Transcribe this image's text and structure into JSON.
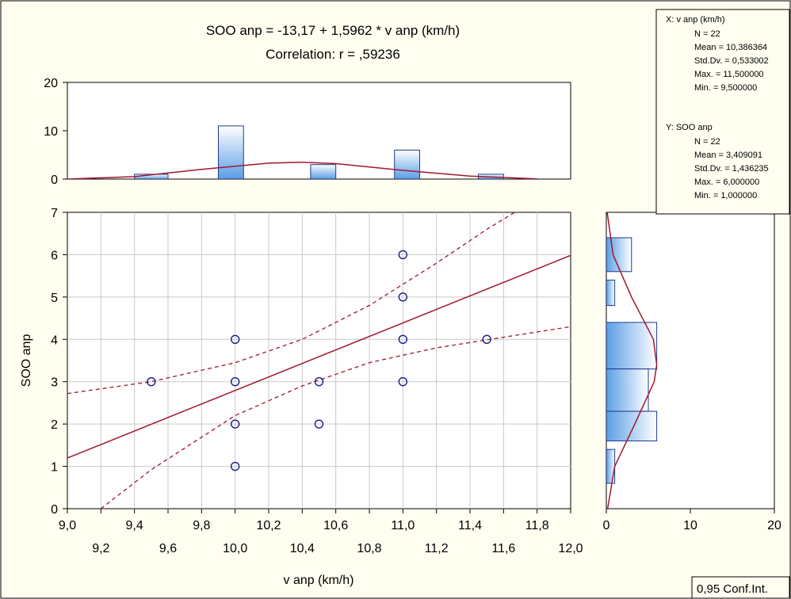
{
  "chart_data": {
    "type": "scatter",
    "title": "SOO anp = -13,17 + 1,5962 * v anp (km/h)",
    "subtitle": "Correlation: r = ,59236",
    "xlabel": "v anp (km/h)",
    "ylabel": "SOO anp",
    "xlim": [
      9.0,
      12.0
    ],
    "ylim": [
      0,
      7
    ],
    "x_ticks_row1": [
      "9,0",
      "9,4",
      "9,8",
      "10,2",
      "10,6",
      "11,0",
      "11,4",
      "11,8"
    ],
    "x_ticks_row1_values": [
      9.0,
      9.4,
      9.8,
      10.2,
      10.6,
      11.0,
      11.4,
      11.8
    ],
    "x_ticks_row2": [
      "9,2",
      "9,6",
      "10,0",
      "10,4",
      "10,8",
      "11,2",
      "11,6",
      "12,0"
    ],
    "x_ticks_row2_values": [
      9.2,
      9.6,
      10.0,
      10.4,
      10.8,
      11.2,
      11.6,
      12.0
    ],
    "y_ticks": [
      "0",
      "1",
      "2",
      "3",
      "4",
      "5",
      "6",
      "7"
    ],
    "y_tick_values": [
      0,
      1,
      2,
      3,
      4,
      5,
      6,
      7
    ],
    "points": [
      {
        "x": 9.5,
        "y": 3
      },
      {
        "x": 10.0,
        "y": 4
      },
      {
        "x": 10.0,
        "y": 3
      },
      {
        "x": 10.0,
        "y": 2
      },
      {
        "x": 10.0,
        "y": 1
      },
      {
        "x": 10.5,
        "y": 3
      },
      {
        "x": 10.5,
        "y": 2
      },
      {
        "x": 11.0,
        "y": 6
      },
      {
        "x": 11.0,
        "y": 5
      },
      {
        "x": 11.0,
        "y": 4
      },
      {
        "x": 11.0,
        "y": 3
      },
      {
        "x": 11.5,
        "y": 4
      }
    ],
    "regression": {
      "intercept": -13.17,
      "slope": 1.5962
    },
    "conf_band_upper": [
      [
        9.0,
        2.72
      ],
      [
        9.5,
        3.0
      ],
      [
        10.0,
        3.45
      ],
      [
        10.4,
        4.0
      ],
      [
        10.8,
        4.8
      ],
      [
        11.2,
        5.8
      ],
      [
        11.5,
        6.6
      ],
      [
        11.75,
        7.2
      ]
    ],
    "conf_band_lower": [
      [
        9.2,
        0.0
      ],
      [
        9.5,
        0.92
      ],
      [
        10.0,
        2.2
      ],
      [
        10.4,
        2.9
      ],
      [
        10.8,
        3.45
      ],
      [
        11.2,
        3.8
      ],
      [
        11.6,
        4.05
      ],
      [
        12.0,
        4.3
      ]
    ],
    "top_hist": {
      "ylim": [
        0,
        20
      ],
      "y_ticks": [
        "0",
        "10",
        "20"
      ],
      "y_tick_values": [
        0,
        10,
        20
      ],
      "bins": [
        {
          "x0": 9.4,
          "x1": 9.6,
          "count": 1
        },
        {
          "x0": 9.9,
          "x1": 10.05,
          "count": 11
        },
        {
          "x0": 10.45,
          "x1": 10.6,
          "count": 3
        },
        {
          "x0": 10.95,
          "x1": 11.1,
          "count": 6
        },
        {
          "x0": 11.45,
          "x1": 11.6,
          "count": 1
        }
      ],
      "normal_curve": [
        [
          9.0,
          0.0
        ],
        [
          9.4,
          0.5
        ],
        [
          9.8,
          2.0
        ],
        [
          10.2,
          3.3
        ],
        [
          10.4,
          3.5
        ],
        [
          10.6,
          3.2
        ],
        [
          11.0,
          1.8
        ],
        [
          11.4,
          0.6
        ],
        [
          11.8,
          0.05
        ]
      ]
    },
    "side_hist": {
      "xlim": [
        0,
        20
      ],
      "x_ticks": [
        "0",
        "10",
        "20"
      ],
      "x_tick_values": [
        0,
        10,
        20
      ],
      "bins": [
        {
          "y0": 5.6,
          "y1": 6.4,
          "count": 3
        },
        {
          "y0": 4.8,
          "y1": 5.4,
          "count": 1
        },
        {
          "y0": 3.3,
          "y1": 4.4,
          "count": 6
        },
        {
          "y0": 2.3,
          "y1": 3.3,
          "count": 5
        },
        {
          "y0": 1.6,
          "y1": 2.3,
          "count": 6
        },
        {
          "y0": 0.6,
          "y1": 1.4,
          "count": 1
        }
      ],
      "normal_curve": [
        [
          7.0,
          0.1
        ],
        [
          6.0,
          0.8
        ],
        [
          5.0,
          3.0
        ],
        [
          4.0,
          5.6
        ],
        [
          3.4,
          6.0
        ],
        [
          3.0,
          5.7
        ],
        [
          2.0,
          3.4
        ],
        [
          1.0,
          1.0
        ],
        [
          0.0,
          0.15
        ]
      ]
    },
    "stats": {
      "x_header": "X:  v anp (km/h)",
      "x_lines": [
        "N = 22",
        "Mean = 10,386364",
        "Std.Dv. = 0,533002",
        "Max. = 11,500000",
        "Min. = 9,500000"
      ],
      "y_header": "Y:  SOO anp",
      "y_lines": [
        "N = 22",
        "Mean = 3,409091",
        "Std.Dv. = 1,436235",
        "Max. = 6,000000",
        "Min. = 1,000000"
      ]
    },
    "legend": "0,95 Conf.Int.",
    "colors": {
      "background": "#fffef0",
      "plot_bg": "#ffffff",
      "grid": "#c8c8c8",
      "line": "#a0182e",
      "point": "#1a1a8c",
      "bar_fill_light": "#ffffff",
      "bar_fill_dark": "#4a90e2",
      "bar_stroke": "#1f3a8a"
    }
  }
}
